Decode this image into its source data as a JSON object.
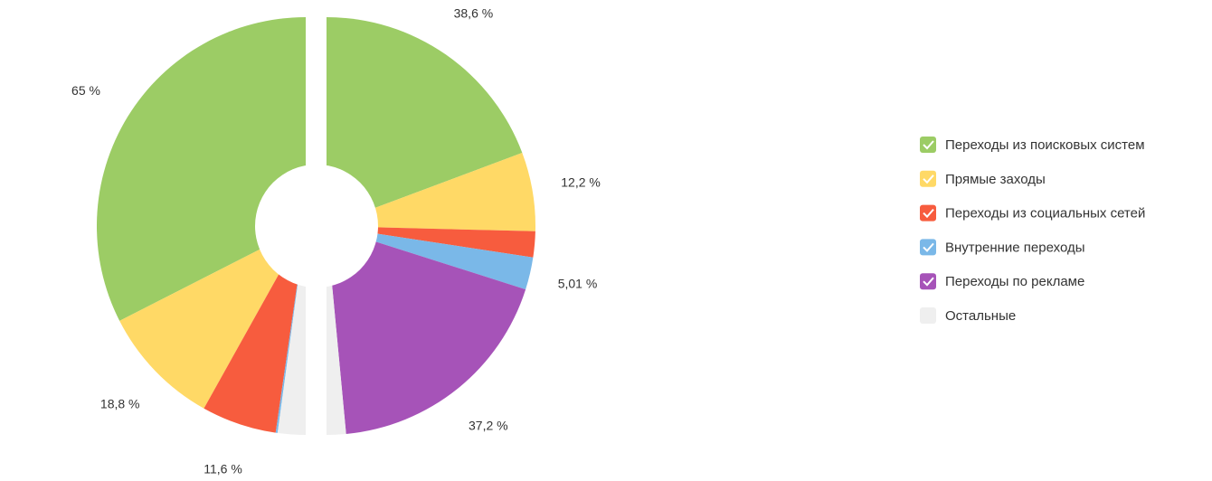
{
  "chart_data": {
    "type": "split-donut",
    "categories": [
      "Переходы из поисковых систем",
      "Прямые заходы",
      "Переходы из социальных сетей",
      "Внутренние переходы",
      "Переходы по рекламе",
      "Остальные"
    ],
    "colors": [
      "#9ccc65",
      "#ffd966",
      "#f75c3e",
      "#7ab8e8",
      "#a653b8",
      "#efefef"
    ],
    "series": [
      {
        "values": [
          65,
          18.8,
          11.6,
          0.3,
          0,
          4.3
        ],
        "value_labels": [
          "65 %",
          "18,8 %",
          "11,6 %",
          null,
          null,
          null
        ]
      },
      {
        "values": [
          38.6,
          12.2,
          4,
          5.01,
          37.2,
          2.99
        ],
        "value_labels": [
          "38,6 %",
          "12,2 %",
          null,
          "5,01 %",
          "37,2 %",
          null
        ]
      }
    ]
  }
}
